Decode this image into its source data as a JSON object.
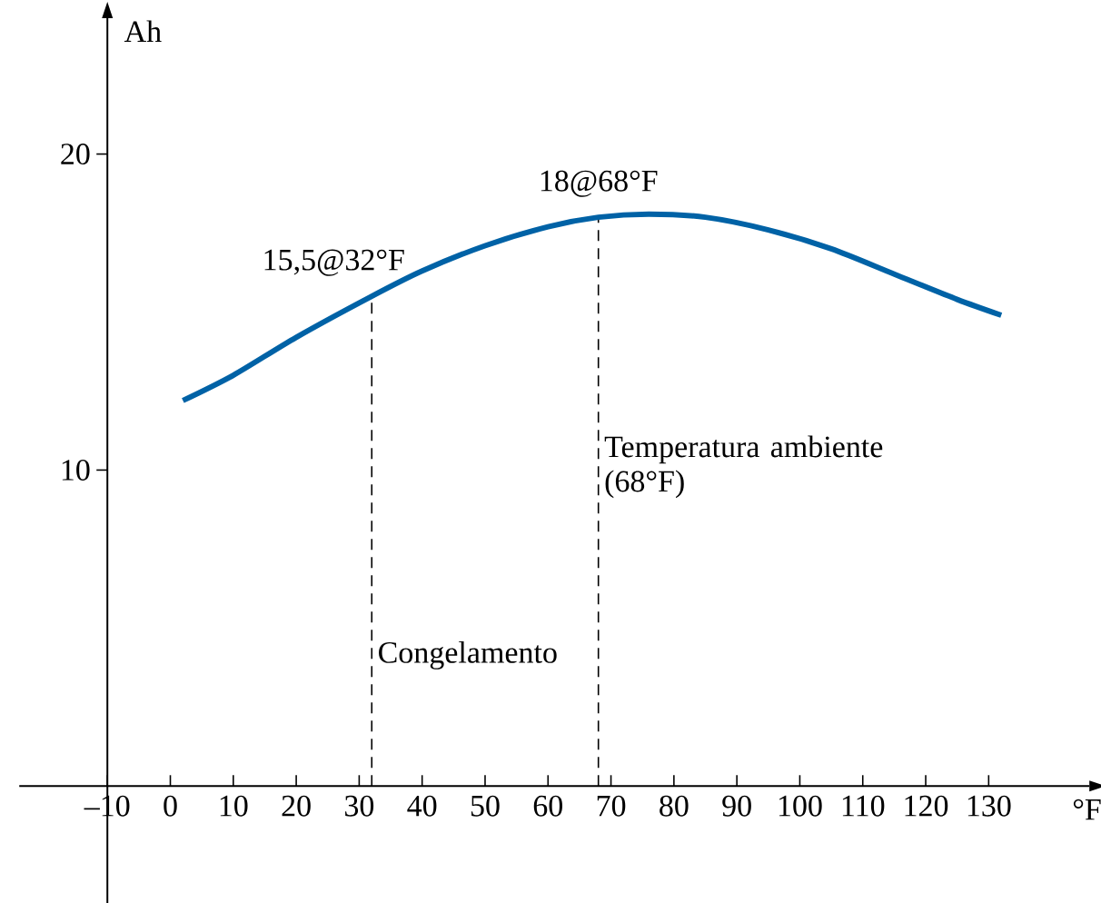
{
  "chart_data": {
    "type": "line",
    "xlabel": "°F",
    "ylabel": "Ah",
    "xlim": [
      -24,
      146
    ],
    "ylim": [
      -3.7,
      24.3
    ],
    "xticks": [
      {
        "value": -10,
        "label": "–10"
      },
      0,
      10,
      20,
      30,
      40,
      50,
      60,
      70,
      80,
      90,
      100,
      110,
      120,
      130
    ],
    "yticks": [
      10,
      20
    ],
    "series": [
      {
        "color": "#0062a6",
        "x": [
          2,
          10,
          20,
          32,
          40,
          50,
          60,
          68,
          76,
          85,
          95,
          105,
          115,
          125,
          132
        ],
        "values": [
          12.2,
          13.0,
          14.2,
          15.5,
          16.3,
          17.1,
          17.7,
          18.0,
          18.1,
          18.0,
          17.6,
          17.0,
          16.2,
          15.4,
          14.9
        ]
      }
    ],
    "ref_lines": [
      {
        "axis": "x",
        "value": 32,
        "label": "Congelamento",
        "line_style": "dashed"
      },
      {
        "axis": "x",
        "value": 68,
        "label": "Temperatura ambiente (68°F)",
        "line_style": "dashed"
      }
    ],
    "annotations": [
      {
        "text": "15,5@32°F",
        "x": 32,
        "y": 15.5
      },
      {
        "text": "18@68°F",
        "x": 68,
        "y": 18
      }
    ]
  }
}
